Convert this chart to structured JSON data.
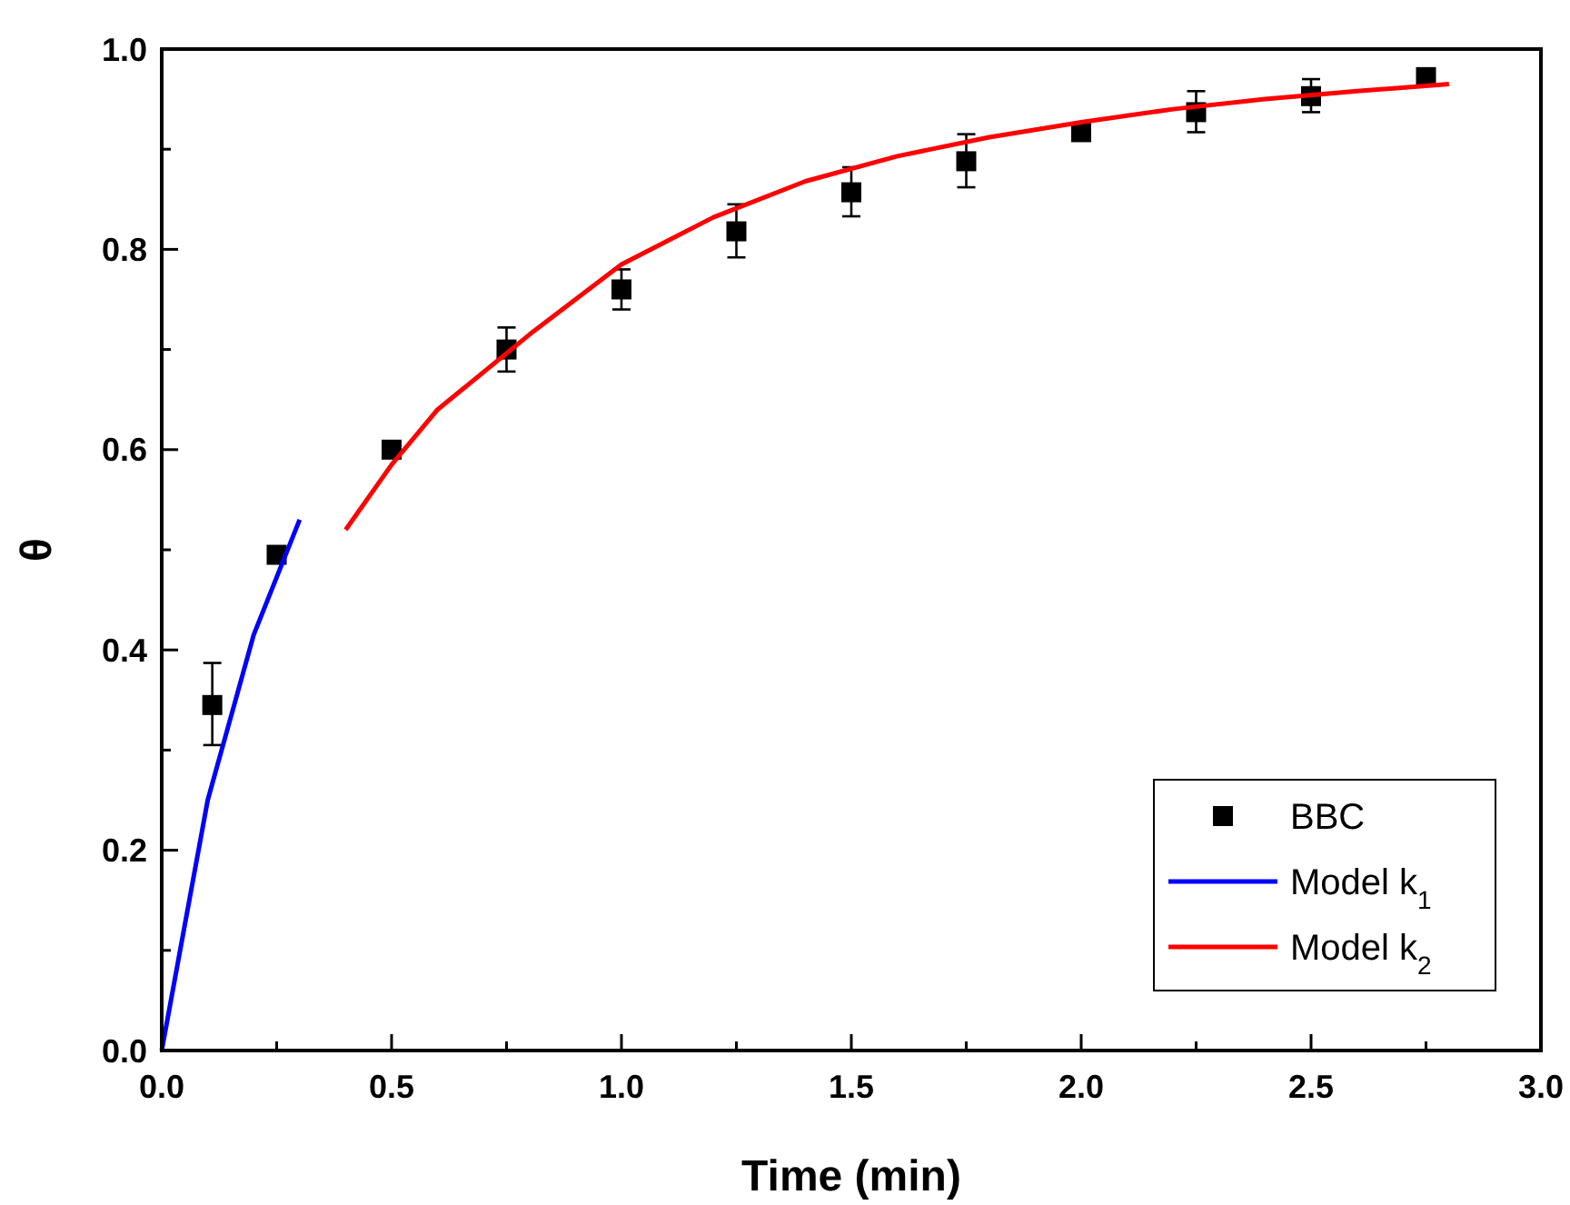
{
  "chart_data": {
    "type": "scatter",
    "xlabel": "Time (min)",
    "ylabel": "θ",
    "xlim": [
      0,
      3
    ],
    "ylim": [
      0,
      1
    ],
    "xticks": [
      {
        "value": 0,
        "label": "0.0"
      },
      {
        "value": 0.25,
        "label": null
      },
      {
        "value": 0.5,
        "label": "0.5"
      },
      {
        "value": 0.75,
        "label": null
      },
      {
        "value": 1,
        "label": "1.0"
      },
      {
        "value": 1.25,
        "label": null
      },
      {
        "value": 1.5,
        "label": "1.5"
      },
      {
        "value": 1.75,
        "label": null
      },
      {
        "value": 2,
        "label": "2.0"
      },
      {
        "value": 2.25,
        "label": null
      },
      {
        "value": 2.5,
        "label": "2.5"
      },
      {
        "value": 2.75,
        "label": null
      },
      {
        "value": 3,
        "label": "3.0"
      }
    ],
    "yticks": [
      {
        "value": 0,
        "label": "0.0"
      },
      {
        "value": 0.1,
        "label": null
      },
      {
        "value": 0.2,
        "label": "0.2"
      },
      {
        "value": 0.3,
        "label": null
      },
      {
        "value": 0.4,
        "label": "0.4"
      },
      {
        "value": 0.5,
        "label": null
      },
      {
        "value": 0.6,
        "label": "0.6"
      },
      {
        "value": 0.7,
        "label": null
      },
      {
        "value": 0.8,
        "label": "0.8"
      },
      {
        "value": 0.9,
        "label": null
      },
      {
        "value": 1,
        "label": "1.0"
      }
    ],
    "grid": false,
    "legend": "bottom right",
    "series": [
      {
        "name": "BBC",
        "marker": "square",
        "color": "#000000",
        "x": [
          0.11,
          0.25,
          0.5,
          0.75,
          1.0,
          1.25,
          1.5,
          1.75,
          2.0,
          2.25,
          2.5,
          2.75
        ],
        "values": [
          0.345,
          0.495,
          0.6,
          0.7,
          0.76,
          0.818,
          0.857,
          0.888,
          0.917,
          0.937,
          0.953,
          0.972
        ],
        "errors": [
          [
            0.305,
            0.387
          ],
          null,
          null,
          [
            0.678,
            0.722
          ],
          [
            0.74,
            0.78
          ],
          [
            0.792,
            0.845
          ],
          [
            0.833,
            0.882
          ],
          [
            0.862,
            0.915
          ],
          null,
          [
            0.917,
            0.958
          ],
          [
            0.937,
            0.97
          ],
          null
        ]
      },
      {
        "name": "Model k$_{1}$",
        "type": "line",
        "color": "#0000ff",
        "x": [
          0,
          0.1,
          0.2,
          0.3
        ],
        "values": [
          0,
          0.25,
          0.415,
          0.53
        ]
      },
      {
        "name": "Model k$_{2}$",
        "type": "line",
        "color": "#ff0000",
        "x": [
          0.4,
          0.5,
          0.6,
          0.8,
          1.0,
          1.2,
          1.4,
          1.6,
          1.8,
          2.0,
          2.2,
          2.4,
          2.6,
          2.8
        ],
        "values": [
          0.52,
          0.585,
          0.64,
          0.715,
          0.785,
          0.832,
          0.868,
          0.893,
          0.912,
          0.927,
          0.94,
          0.95,
          0.958,
          0.965
        ]
      }
    ]
  }
}
